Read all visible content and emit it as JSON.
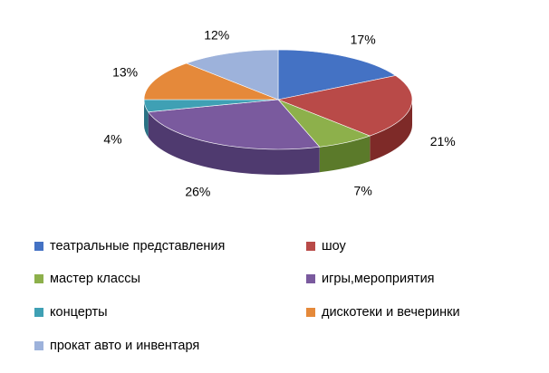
{
  "chart_data": {
    "type": "pie",
    "title": "",
    "categories": [
      "театральные представления",
      "шоу",
      "мастер классы",
      "игры,мероприятия",
      "концерты",
      "дискотеки и вечеринки",
      "прокат авто и инвентаря"
    ],
    "values": [
      17,
      21,
      7,
      26,
      4,
      13,
      12
    ],
    "labels": [
      "17%",
      "21%",
      "7%",
      "26%",
      "4%",
      "13%",
      "12%"
    ],
    "colors": [
      "#4472C4",
      "#B94A48",
      "#8DB04B",
      "#7A5A9E",
      "#3FA0B4",
      "#E5893A",
      "#9DB2DB"
    ],
    "side_colors": [
      "#2E5287",
      "#7E2A28",
      "#5B7A2A",
      "#4F3A6F",
      "#2A7284",
      "#A55D20",
      "#6C82AF"
    ],
    "style": "3d",
    "legend_position": "bottom"
  }
}
